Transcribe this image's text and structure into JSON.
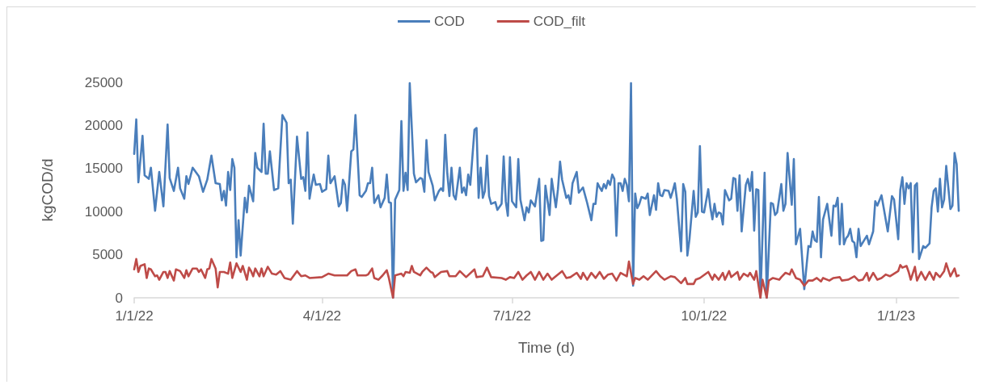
{
  "chart_data": {
    "type": "line",
    "xlabel": "Time (d)",
    "ylabel": "kgCOD/d",
    "legend": "top",
    "grid": false,
    "marker": "none",
    "xlim": [
      "2022-01-01",
      "2023-01-31"
    ],
    "xticks": [
      {
        "value": "2022-01-01",
        "label": "1/1/22"
      },
      {
        "value": "2022-04-01",
        "label": "4/1/22"
      },
      {
        "value": "2022-07-01",
        "label": "7/1/22"
      },
      {
        "value": "2022-10-01",
        "label": "10/1/22"
      },
      {
        "value": "2023-01-01",
        "label": "1/1/23"
      }
    ],
    "ylim": [
      0,
      25000
    ],
    "yticks": [
      0,
      5000,
      10000,
      15000,
      20000,
      25000
    ],
    "series": [
      {
        "name": "COD",
        "color": "#4a7ebb",
        "x": [
          "2022-01-01",
          "2022-01-02",
          "2022-01-03",
          "2022-01-05",
          "2022-01-06",
          "2022-01-08",
          "2022-01-09",
          "2022-01-11",
          "2022-01-13",
          "2022-01-15",
          "2022-01-17",
          "2022-01-18",
          "2022-01-20",
          "2022-01-22",
          "2022-01-23",
          "2022-01-25",
          "2022-01-26",
          "2022-01-27",
          "2022-01-29",
          "2022-02-01",
          "2022-02-03",
          "2022-02-05",
          "2022-02-07",
          "2022-02-09",
          "2022-02-11",
          "2022-02-12",
          "2022-02-13",
          "2022-02-14",
          "2022-02-15",
          "2022-02-16",
          "2022-02-17",
          "2022-02-18",
          "2022-02-19",
          "2022-02-20",
          "2022-02-21",
          "2022-02-23",
          "2022-02-24",
          "2022-02-25",
          "2022-02-27",
          "2022-02-28",
          "2022-03-01",
          "2022-03-03",
          "2022-03-04",
          "2022-03-05",
          "2022-03-06",
          "2022-03-07",
          "2022-03-09",
          "2022-03-11",
          "2022-03-13",
          "2022-03-15",
          "2022-03-16",
          "2022-03-17",
          "2022-03-18",
          "2022-03-20",
          "2022-03-22",
          "2022-03-23",
          "2022-03-24",
          "2022-03-25",
          "2022-03-26",
          "2022-03-27",
          "2022-03-28",
          "2022-03-29",
          "2022-03-31",
          "2022-04-01",
          "2022-04-03",
          "2022-04-04",
          "2022-04-05",
          "2022-04-07",
          "2022-04-09",
          "2022-04-10",
          "2022-04-11",
          "2022-04-12",
          "2022-04-13",
          "2022-04-15",
          "2022-04-16",
          "2022-04-17",
          "2022-04-19",
          "2022-04-20",
          "2022-04-22",
          "2022-04-23",
          "2022-04-24",
          "2022-04-25",
          "2022-04-26",
          "2022-04-28",
          "2022-04-29",
          "2022-05-01",
          "2022-05-02",
          "2022-05-03",
          "2022-05-04",
          "2022-05-05",
          "2022-05-06",
          "2022-05-08",
          "2022-05-09",
          "2022-05-10",
          "2022-05-11",
          "2022-05-12",
          "2022-05-13",
          "2022-05-15",
          "2022-05-16",
          "2022-05-18",
          "2022-05-19",
          "2022-05-20",
          "2022-05-21",
          "2022-05-22",
          "2022-05-24",
          "2022-05-25",
          "2022-05-27",
          "2022-05-28",
          "2022-05-29",
          "2022-05-30",
          "2022-05-31",
          "2022-06-01",
          "2022-06-02",
          "2022-06-03",
          "2022-06-04",
          "2022-06-06",
          "2022-06-07",
          "2022-06-08",
          "2022-06-09",
          "2022-06-10",
          "2022-06-11",
          "2022-06-13",
          "2022-06-14",
          "2022-06-15",
          "2022-06-16",
          "2022-06-17",
          "2022-06-18",
          "2022-06-19",
          "2022-06-20",
          "2022-06-21",
          "2022-06-23",
          "2022-06-24",
          "2022-06-26",
          "2022-06-27",
          "2022-06-28",
          "2022-06-29",
          "2022-06-30",
          "2022-07-01",
          "2022-07-03",
          "2022-07-04",
          "2022-07-05",
          "2022-07-07",
          "2022-07-08",
          "2022-07-09",
          "2022-07-10",
          "2022-07-12",
          "2022-07-14",
          "2022-07-15",
          "2022-07-16",
          "2022-07-17",
          "2022-07-19",
          "2022-07-20",
          "2022-07-22",
          "2022-07-23",
          "2022-07-24",
          "2022-07-25",
          "2022-07-27",
          "2022-07-28",
          "2022-07-29",
          "2022-07-30",
          "2022-08-01",
          "2022-08-02",
          "2022-08-04",
          "2022-08-06",
          "2022-08-08",
          "2022-08-09",
          "2022-08-10",
          "2022-08-11",
          "2022-08-12",
          "2022-08-13",
          "2022-08-14",
          "2022-08-15",
          "2022-08-16",
          "2022-08-17",
          "2022-08-18",
          "2022-08-19",
          "2022-08-20",
          "2022-08-21",
          "2022-08-22",
          "2022-08-23",
          "2022-08-24",
          "2022-08-25",
          "2022-08-26",
          "2022-08-27",
          "2022-08-28",
          "2022-08-29",
          "2022-08-30",
          "2022-08-31",
          "2022-09-01",
          "2022-09-03",
          "2022-09-04",
          "2022-09-05",
          "2022-09-07",
          "2022-09-08",
          "2022-09-09",
          "2022-09-10",
          "2022-09-11",
          "2022-09-12",
          "2022-09-14",
          "2022-09-15",
          "2022-09-16",
          "2022-09-17",
          "2022-09-18",
          "2022-09-20",
          "2022-09-21",
          "2022-09-22",
          "2022-09-23",
          "2022-09-24",
          "2022-09-26",
          "2022-09-27",
          "2022-09-28",
          "2022-09-29",
          "2022-09-30",
          "2022-10-01",
          "2022-10-03",
          "2022-10-04",
          "2022-10-05",
          "2022-10-06",
          "2022-10-07",
          "2022-10-08",
          "2022-10-09",
          "2022-10-10",
          "2022-10-11",
          "2022-10-13",
          "2022-10-14",
          "2022-10-15",
          "2022-10-16",
          "2022-10-17",
          "2022-10-18",
          "2022-10-19",
          "2022-10-21",
          "2022-10-22",
          "2022-10-23",
          "2022-10-24",
          "2022-10-25",
          "2022-10-26",
          "2022-10-27",
          "2022-10-28",
          "2022-10-30",
          "2022-10-31",
          "2022-11-02",
          "2022-11-03",
          "2022-11-04",
          "2022-11-05",
          "2022-11-07",
          "2022-11-08",
          "2022-11-09",
          "2022-11-10",
          "2022-11-12",
          "2022-11-13",
          "2022-11-14",
          "2022-11-16",
          "2022-11-18",
          "2022-11-20",
          "2022-11-21",
          "2022-11-22",
          "2022-11-23",
          "2022-11-24",
          "2022-11-25",
          "2022-11-26",
          "2022-11-27",
          "2022-11-29",
          "2022-12-01",
          "2022-12-02",
          "2022-12-03",
          "2022-12-04",
          "2022-12-05",
          "2022-12-06",
          "2022-12-07",
          "2022-12-08",
          "2022-12-09",
          "2022-12-10",
          "2022-12-11",
          "2022-12-12",
          "2022-12-13",
          "2022-12-14",
          "2022-12-15",
          "2022-12-17",
          "2022-12-18",
          "2022-12-19",
          "2022-12-21",
          "2022-12-22",
          "2022-12-23",
          "2022-12-25",
          "2022-12-28",
          "2022-12-30",
          "2022-12-31",
          "2023-01-02",
          "2023-01-03",
          "2023-01-04",
          "2023-01-05",
          "2023-01-06",
          "2023-01-07",
          "2023-01-08",
          "2023-01-09",
          "2023-01-10",
          "2023-01-11",
          "2023-01-12",
          "2023-01-14",
          "2023-01-15",
          "2023-01-17",
          "2023-01-18",
          "2023-01-19",
          "2023-01-20",
          "2023-01-21",
          "2023-01-22",
          "2023-01-23",
          "2023-01-24",
          "2023-01-25",
          "2023-01-27",
          "2023-01-28",
          "2023-01-29",
          "2023-01-30",
          "2023-01-31"
        ],
        "values": [
          16700,
          20700,
          13400,
          18800,
          14200,
          13800,
          15100,
          10100,
          14600,
          10600,
          20100,
          13900,
          12400,
          15100,
          12700,
          11500,
          14100,
          13200,
          15100,
          14100,
          12300,
          13700,
          16500,
          13300,
          13200,
          11300,
          12400,
          10700,
          14600,
          12500,
          16100,
          15100,
          4700,
          9000,
          4900,
          11600,
          9900,
          13000,
          11200,
          16800,
          15100,
          14600,
          20200,
          14400,
          14400,
          17000,
          12500,
          12700,
          21200,
          20300,
          13300,
          13700,
          8600,
          18700,
          13800,
          14000,
          12400,
          19200,
          11500,
          13000,
          14300,
          13100,
          13200,
          12300,
          12600,
          16500,
          13300,
          14100,
          10600,
          11000,
          13700,
          13100,
          10100,
          17000,
          17200,
          21200,
          11900,
          11700,
          12400,
          13300,
          13300,
          15100,
          11000,
          11900,
          10500,
          11600,
          14300,
          11100,
          11000,
          0,
          11400,
          12500,
          20500,
          12400,
          14500,
          12500,
          24900,
          14400,
          13400,
          13900,
          13800,
          12300,
          18300,
          14600,
          13000,
          11300,
          12400,
          12700,
          12400,
          18900,
          14400,
          11800,
          15100,
          11900,
          11400,
          15100,
          12200,
          12800,
          11900,
          14300,
          13100,
          19500,
          19700,
          11600,
          15100,
          11600,
          12400,
          16500,
          11800,
          10900,
          11100,
          10200,
          10900,
          16400,
          11200,
          9500,
          16300,
          11200,
          10500,
          16100,
          11400,
          9000,
          10500,
          9900,
          11300,
          10600,
          13800,
          6600,
          6700,
          13000,
          9600,
          13800,
          10500,
          12600,
          15800,
          13700,
          11600,
          11900,
          10900,
          13300,
          14600,
          12200,
          12800,
          11000,
          9000,
          10900,
          10900,
          13300,
          12800,
          12400,
          13200,
          12700,
          13600,
          13100,
          14300,
          13800,
          7200,
          13300,
          13300,
          12400,
          13800,
          13100,
          11200,
          24900,
          1400,
          12100,
          10400,
          10900,
          11700,
          11500,
          12100,
          9600,
          11900,
          10200,
          13300,
          11900,
          11800,
          12500,
          12400,
          11600,
          12400,
          13300,
          11400,
          5400,
          13200,
          12300,
          4900,
          6800,
          12400,
          9400,
          9900,
          17600,
          10000,
          9900,
          12600,
          10500,
          9100,
          10900,
          9400,
          9900,
          9800,
          8500,
          12500,
          11300,
          11500,
          13900,
          13800,
          10100,
          14200,
          7700,
          13100,
          13800,
          12400,
          14600,
          7800,
          12600,
          12500,
          0,
          14500,
          0,
          11000,
          10900,
          9600,
          9900,
          13200,
          10100,
          10900,
          16800,
          10800,
          16100,
          6200,
          8000,
          1000,
          6000,
          5900,
          7700,
          6700,
          6500,
          11700,
          4700,
          9100,
          10900,
          7200,
          10700,
          10600,
          11600,
          6200,
          10900,
          6200,
          6900,
          7200,
          8000,
          6600,
          6400,
          4700,
          8000,
          6000,
          6800,
          7200,
          6200,
          7700,
          11200,
          10700,
          11900,
          7700,
          11800,
          11400,
          6800,
          12500,
          14000,
          10900,
          13300,
          12700,
          13300,
          5300,
          13000,
          13300,
          4500,
          6000,
          5800,
          6300,
          10500,
          12400,
          12700,
          10000,
          13800,
          10500,
          11400,
          15300,
          10300,
          10700,
          16800,
          15500,
          10100
        ]
      },
      {
        "name": "COD_filt",
        "color": "#be4b48",
        "x": [
          "2022-01-01",
          "2022-01-02",
          "2022-01-03",
          "2022-01-04",
          "2022-01-06",
          "2022-01-07",
          "2022-01-08",
          "2022-01-09",
          "2022-01-11",
          "2022-01-12",
          "2022-01-13",
          "2022-01-15",
          "2022-01-16",
          "2022-01-17",
          "2022-01-18",
          "2022-01-20",
          "2022-01-21",
          "2022-01-23",
          "2022-01-25",
          "2022-01-26",
          "2022-01-27",
          "2022-01-29",
          "2022-01-31",
          "2022-02-01",
          "2022-02-02",
          "2022-02-04",
          "2022-02-05",
          "2022-02-06",
          "2022-02-07",
          "2022-02-09",
          "2022-02-10",
          "2022-02-11",
          "2022-02-13",
          "2022-02-15",
          "2022-02-16",
          "2022-02-17",
          "2022-02-19",
          "2022-02-21",
          "2022-02-22",
          "2022-02-24",
          "2022-02-25",
          "2022-02-26",
          "2022-02-27",
          "2022-02-28",
          "2022-03-02",
          "2022-03-03",
          "2022-03-04",
          "2022-03-06",
          "2022-03-08",
          "2022-03-10",
          "2022-03-12",
          "2022-03-14",
          "2022-03-17",
          "2022-03-20",
          "2022-03-22",
          "2022-03-24",
          "2022-03-26",
          "2022-04-01",
          "2022-04-04",
          "2022-04-07",
          "2022-04-09",
          "2022-04-13",
          "2022-04-15",
          "2022-04-17",
          "2022-04-18",
          "2022-04-22",
          "2022-04-23",
          "2022-04-25",
          "2022-04-26",
          "2022-04-28",
          "2022-04-30",
          "2022-05-02",
          "2022-05-03",
          "2022-05-05",
          "2022-05-06",
          "2022-05-09",
          "2022-05-10",
          "2022-05-11",
          "2022-05-13",
          "2022-05-14",
          "2022-05-15",
          "2022-05-18",
          "2022-05-19",
          "2022-05-21",
          "2022-05-23",
          "2022-05-24",
          "2022-05-25",
          "2022-05-28",
          "2022-05-31",
          "2022-06-01",
          "2022-06-04",
          "2022-06-06",
          "2022-06-09",
          "2022-06-13",
          "2022-06-14",
          "2022-06-17",
          "2022-06-19",
          "2022-06-21",
          "2022-06-26",
          "2022-06-28",
          "2022-06-30",
          "2022-07-02",
          "2022-07-04",
          "2022-07-06",
          "2022-07-08",
          "2022-07-10",
          "2022-07-12",
          "2022-07-14",
          "2022-07-16",
          "2022-07-18",
          "2022-07-20",
          "2022-07-22",
          "2022-07-25",
          "2022-07-27",
          "2022-07-29",
          "2022-08-01",
          "2022-08-03",
          "2022-08-04",
          "2022-08-06",
          "2022-08-08",
          "2022-08-10",
          "2022-08-12",
          "2022-08-14",
          "2022-08-16",
          "2022-08-18",
          "2022-08-20",
          "2022-08-22",
          "2022-08-25",
          "2022-08-26",
          "2022-08-28",
          "2022-08-29",
          "2022-08-31",
          "2022-09-02",
          "2022-09-04",
          "2022-09-08",
          "2022-09-10",
          "2022-09-12",
          "2022-09-15",
          "2022-09-17",
          "2022-09-20",
          "2022-09-22",
          "2022-09-23",
          "2022-09-26",
          "2022-09-27",
          "2022-09-29",
          "2022-10-03",
          "2022-10-05",
          "2022-10-06",
          "2022-10-08",
          "2022-10-10",
          "2022-10-11",
          "2022-10-13",
          "2022-10-14",
          "2022-10-17",
          "2022-10-18",
          "2022-10-20",
          "2022-10-22",
          "2022-10-23",
          "2022-10-25",
          "2022-10-26",
          "2022-10-28",
          "2022-10-29",
          "2022-10-31",
          "2022-11-01",
          "2022-11-03",
          "2022-11-06",
          "2022-11-07",
          "2022-11-09",
          "2022-11-11",
          "2022-11-12",
          "2022-11-14",
          "2022-11-16",
          "2022-11-18",
          "2022-11-20",
          "2022-11-22",
          "2022-11-24",
          "2022-11-26",
          "2022-11-27",
          "2022-11-30",
          "2022-12-02",
          "2022-12-05",
          "2022-12-06",
          "2022-12-09",
          "2022-12-12",
          "2022-12-14",
          "2022-12-16",
          "2022-12-18",
          "2022-12-19",
          "2022-12-21",
          "2022-12-23",
          "2022-12-25",
          "2022-12-27",
          "2022-12-29",
          "2022-12-31",
          "2023-01-02",
          "2023-01-03",
          "2023-01-04",
          "2023-01-06",
          "2023-01-07",
          "2023-01-08",
          "2023-01-10",
          "2023-01-11",
          "2023-01-13",
          "2023-01-15",
          "2023-01-17",
          "2023-01-19",
          "2023-01-20",
          "2023-01-22",
          "2023-01-24",
          "2023-01-25",
          "2023-01-27",
          "2023-01-29",
          "2023-01-30",
          "2023-01-31"
        ],
        "values": [
          3300,
          4500,
          3000,
          3700,
          3900,
          2300,
          3400,
          3300,
          2500,
          2600,
          2100,
          3000,
          3000,
          2300,
          3100,
          2000,
          3300,
          3100,
          2300,
          3200,
          2500,
          3400,
          3400,
          3000,
          3300,
          2300,
          3300,
          3400,
          4500,
          3400,
          1200,
          3000,
          3000,
          2800,
          4100,
          2300,
          4000,
          3000,
          3700,
          2100,
          3500,
          3100,
          2500,
          3400,
          2500,
          3400,
          2500,
          3600,
          2800,
          2700,
          3100,
          2300,
          2100,
          3100,
          2500,
          2600,
          2300,
          2400,
          2800,
          2600,
          2600,
          2600,
          3100,
          3300,
          2600,
          2600,
          2700,
          3400,
          2300,
          2100,
          2600,
          3200,
          2300,
          0,
          2600,
          2800,
          2500,
          3000,
          2900,
          3700,
          3000,
          2600,
          3000,
          3500,
          3000,
          2900,
          2400,
          3000,
          3100,
          2500,
          2500,
          3100,
          2400,
          3300,
          2400,
          2500,
          3500,
          2400,
          2300,
          2100,
          2400,
          2300,
          3000,
          2100,
          2600,
          3000,
          2100,
          3000,
          2100,
          2800,
          2100,
          2500,
          3100,
          2300,
          2400,
          2900,
          2200,
          2900,
          2100,
          2900,
          2300,
          3000,
          2200,
          2700,
          2800,
          2000,
          2900,
          2500,
          4200,
          1600,
          2300,
          2100,
          2500,
          2100,
          3100,
          2500,
          2100,
          2500,
          2400,
          1700,
          2300,
          1600,
          1600,
          2100,
          2300,
          3000,
          2100,
          2700,
          2100,
          2900,
          2100,
          3100,
          2400,
          3000,
          2100,
          2800,
          2500,
          2900,
          2100,
          3100,
          0,
          2100,
          0,
          2000,
          2300,
          2100,
          2400,
          2900,
          2700,
          3300,
          2300,
          2100,
          1400,
          2000,
          2000,
          2300,
          1900,
          2300,
          2000,
          2300,
          2400,
          2000,
          2100,
          2500,
          2000,
          2100,
          2900,
          2000,
          2900,
          2100,
          2300,
          2700,
          2500,
          2800,
          3100,
          3800,
          3500,
          3700,
          3000,
          2100,
          3600,
          2000,
          3000,
          2100,
          3000,
          2100,
          2900,
          2400,
          3100,
          4000,
          2500,
          3400,
          2500,
          2600
        ]
      }
    ]
  }
}
